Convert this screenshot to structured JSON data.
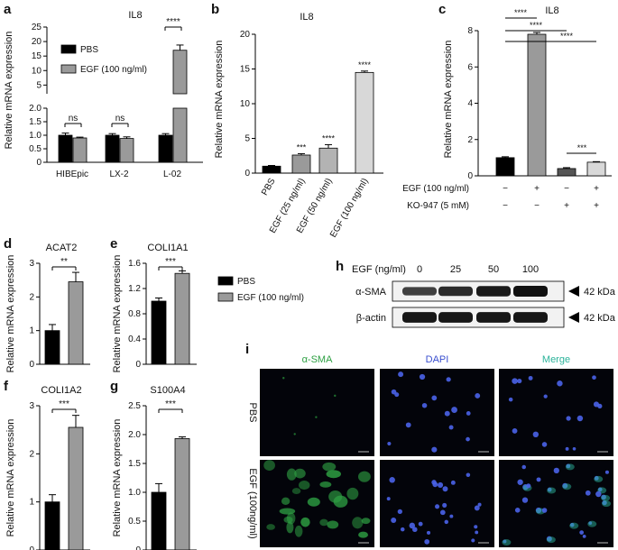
{
  "legend": {
    "pbs": "PBS",
    "egf": "EGF (100 ng/ml)"
  },
  "chart_data": [
    {
      "panel": "a",
      "type": "bar",
      "title": "IL8",
      "ylabel": "Relative mRNA expression",
      "categories": [
        "HIBEpic",
        "LX-2",
        "L-02"
      ],
      "series": [
        {
          "name": "PBS",
          "values": [
            1.0,
            1.0,
            1.0
          ],
          "errors": [
            0.08,
            0.06,
            0.06
          ]
        },
        {
          "name": "EGF (100 ng/ml)",
          "values": [
            0.9,
            0.88,
            17.0
          ],
          "errors": [
            0.03,
            0.06,
            1.8
          ]
        }
      ],
      "axis_break": {
        "lower_ylim": [
          0,
          2.0
        ],
        "upper_ylim": [
          2,
          25
        ]
      },
      "lower_ticks": [
        "0",
        "0.5",
        "1.0",
        "1.5",
        "2.0"
      ],
      "upper_ticks": [
        "5",
        "10",
        "15",
        "20",
        "25"
      ],
      "significance": [
        "ns",
        "ns",
        "****"
      ]
    },
    {
      "panel": "b",
      "type": "bar",
      "title": "IL8",
      "ylabel": "Relative mRNA expression",
      "categories": [
        "PBS",
        "EGF (25 ng/ml)",
        "EGF (50 ng/ml)",
        "EGF (100 ng/ml)"
      ],
      "values": [
        1.0,
        2.6,
        3.6,
        14.5
      ],
      "errors": [
        0.1,
        0.2,
        0.5,
        0.2
      ],
      "ylim": [
        0,
        20
      ],
      "ticks": [
        "0",
        "5",
        "10",
        "15",
        "20"
      ],
      "significance": [
        "",
        "***",
        "****",
        "****"
      ]
    },
    {
      "panel": "c",
      "type": "bar",
      "title": "IL8",
      "ylabel": "Relative mRNA expression",
      "values": [
        1.0,
        7.8,
        0.4,
        0.75
      ],
      "errors": [
        0.05,
        0.1,
        0.05,
        0.03
      ],
      "ylim": [
        0,
        8
      ],
      "ticks": [
        "0",
        "2",
        "4",
        "6",
        "8"
      ],
      "row_labels": [
        "EGF (100 ng/ml)",
        "KO-947 (5 mM)"
      ],
      "row_values": [
        [
          "−",
          "+",
          "−",
          "+"
        ],
        [
          "−",
          "−",
          "+",
          "+"
        ]
      ],
      "comparisons": [
        "****",
        "****",
        "****",
        "***"
      ]
    },
    {
      "panel": "d",
      "type": "bar",
      "title": "ACAT2",
      "ylabel": "Relative mRNA expression",
      "values": [
        1.0,
        2.45
      ],
      "errors": [
        0.18,
        0.28
      ],
      "ylim": [
        0,
        3
      ],
      "ticks": [
        "0",
        "1",
        "2",
        "3"
      ],
      "significance": "**"
    },
    {
      "panel": "e",
      "type": "bar",
      "title": "COLI1A1",
      "ylabel": "Relative mRNA expression",
      "values": [
        1.0,
        1.44
      ],
      "errors": [
        0.05,
        0.04
      ],
      "ylim": [
        0,
        1.6
      ],
      "ticks": [
        "0",
        "0.4",
        "0.8",
        "1.2",
        "1.6"
      ],
      "significance": "***"
    },
    {
      "panel": "f",
      "type": "bar",
      "title": "COLI1A2",
      "ylabel": "Relative mRNA expression",
      "values": [
        1.0,
        2.55
      ],
      "errors": [
        0.15,
        0.25
      ],
      "ylim": [
        0,
        3
      ],
      "ticks": [
        "0",
        "1",
        "2",
        "3"
      ],
      "significance": "***"
    },
    {
      "panel": "g",
      "type": "bar",
      "title": "S100A4",
      "ylabel": "Relative mRNA expression",
      "values": [
        1.0,
        1.93
      ],
      "errors": [
        0.15,
        0.03
      ],
      "ylim": [
        0,
        2.5
      ],
      "ticks": [
        "0",
        "0.5",
        "1.0",
        "1.5",
        "2.0",
        "2.5"
      ],
      "significance": "***"
    }
  ],
  "western": {
    "panel": "h",
    "header_label": "EGF (ng/ml)",
    "lanes": [
      "0",
      "25",
      "50",
      "100"
    ],
    "rows": [
      {
        "name": "α-SMA",
        "kda": "42 kDa",
        "intensity": [
          0.55,
          0.75,
          0.9,
          1.0
        ]
      },
      {
        "name": "β-actin",
        "kda": "42 kDa",
        "intensity": [
          0.95,
          0.95,
          0.95,
          0.95
        ]
      }
    ]
  },
  "microscopy": {
    "panel": "i",
    "columns": [
      {
        "label": "α-SMA",
        "color": "#2ea043"
      },
      {
        "label": "DAPI",
        "color": "#3a4fcf"
      },
      {
        "label": "Merge",
        "color": "#2bb39a"
      }
    ],
    "rows": [
      "PBS",
      "EGF (100ng/ml)"
    ]
  },
  "colors": {
    "pbs": "#000000",
    "egf": "#9a9a9a",
    "light": "#d8d8d8",
    "mid": "#b3b3b3"
  }
}
